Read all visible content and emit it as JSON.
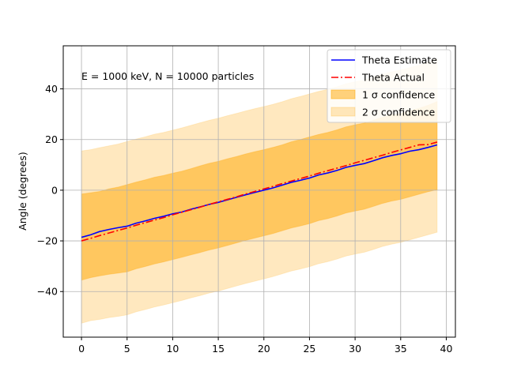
{
  "chart_data": {
    "type": "line",
    "title": "",
    "xlabel": "",
    "ylabel": "Angle (degrees)",
    "xlim": [
      -2,
      41
    ],
    "ylim": [
      -58,
      57
    ],
    "xticks": [
      0,
      5,
      10,
      15,
      20,
      25,
      30,
      35,
      40
    ],
    "yticks": [
      -40,
      -20,
      0,
      20,
      40
    ],
    "grid": true,
    "legend_position": "top-right",
    "annotation": "E = 1000 keV, N = 10000 particles",
    "x": [
      0,
      1,
      2,
      3,
      4,
      5,
      6,
      7,
      8,
      9,
      10,
      11,
      12,
      13,
      14,
      15,
      16,
      17,
      18,
      19,
      20,
      21,
      22,
      23,
      24,
      25,
      26,
      27,
      28,
      29,
      30,
      31,
      32,
      33,
      34,
      35,
      36,
      37,
      38,
      39
    ],
    "series": [
      {
        "name": "Theta Estimate",
        "color": "#0000ff",
        "style": "solid",
        "values": [
          -18.6,
          -17.6,
          -16.3,
          -15.5,
          -14.8,
          -14.2,
          -13.0,
          -12.1,
          -11.1,
          -10.3,
          -9.3,
          -8.6,
          -7.5,
          -6.6,
          -5.6,
          -4.8,
          -3.8,
          -2.8,
          -1.8,
          -0.9,
          0.0,
          0.9,
          2.0,
          3.1,
          3.9,
          4.8,
          6.0,
          6.8,
          7.8,
          9.0,
          9.8,
          10.5,
          11.6,
          12.8,
          13.7,
          14.4,
          15.4,
          16.0,
          16.9,
          17.9
        ]
      },
      {
        "name": "Theta Actual",
        "color": "#ff0000",
        "style": "dashdot",
        "values": [
          -20.0,
          -19.0,
          -17.9,
          -16.9,
          -15.9,
          -14.9,
          -13.8,
          -12.8,
          -11.8,
          -10.8,
          -9.7,
          -8.7,
          -7.7,
          -6.7,
          -5.6,
          -4.6,
          -3.6,
          -2.6,
          -1.5,
          -0.5,
          0.5,
          1.5,
          2.6,
          3.6,
          4.6,
          5.6,
          6.7,
          7.7,
          8.7,
          9.7,
          10.8,
          11.8,
          12.8,
          13.8,
          14.9,
          15.9,
          16.9,
          17.9,
          18.0,
          19.0
        ]
      }
    ],
    "bands": [
      {
        "name": "1 σ confidence",
        "color": "#ffa500",
        "opacity": 0.5,
        "lower": [
          -35.5,
          -34.5,
          -33.8,
          -33.2,
          -32.7,
          -32.2,
          -31.0,
          -30.1,
          -29.1,
          -28.3,
          -27.4,
          -26.5,
          -25.5,
          -24.6,
          -23.6,
          -22.8,
          -21.8,
          -20.8,
          -19.8,
          -18.9,
          -18.0,
          -17.1,
          -16.0,
          -14.9,
          -14.1,
          -13.2,
          -12.0,
          -11.2,
          -10.2,
          -9.0,
          -8.2,
          -7.5,
          -6.4,
          -5.2,
          -4.3,
          -3.6,
          -2.6,
          -1.6,
          -0.6,
          0.2
        ],
        "upper": [
          -1.5,
          -1.0,
          -0.5,
          0.5,
          1.2,
          2.2,
          3.2,
          4.1,
          5.1,
          5.8,
          6.7,
          7.5,
          8.5,
          9.6,
          10.6,
          11.4,
          12.4,
          13.3,
          14.3,
          15.2,
          16.0,
          16.9,
          17.9,
          19.1,
          20.0,
          21.0,
          22.0,
          22.8,
          23.8,
          25.0,
          25.8,
          26.5,
          27.6,
          28.8,
          29.7,
          30.3,
          31.4,
          32.3,
          33.5,
          35.0
        ]
      },
      {
        "name": "2 σ confidence",
        "color": "#ffa500",
        "opacity": 0.25,
        "lower": [
          -52.5,
          -51.5,
          -51.0,
          -50.3,
          -49.8,
          -49.2,
          -48.0,
          -47.1,
          -46.1,
          -45.3,
          -44.4,
          -43.5,
          -42.5,
          -41.6,
          -40.6,
          -39.8,
          -38.8,
          -37.8,
          -36.8,
          -35.9,
          -35.0,
          -34.1,
          -33.0,
          -31.9,
          -31.1,
          -30.2,
          -29.0,
          -28.2,
          -27.2,
          -26.0,
          -25.2,
          -24.5,
          -23.4,
          -22.2,
          -21.3,
          -20.6,
          -19.6,
          -18.6,
          -17.6,
          -16.6
        ],
        "upper": [
          15.5,
          16.0,
          16.8,
          17.5,
          18.2,
          19.2,
          20.2,
          21.1,
          22.1,
          22.8,
          23.7,
          24.6,
          25.6,
          26.6,
          27.6,
          28.4,
          29.4,
          30.3,
          31.3,
          32.2,
          33.0,
          33.9,
          34.9,
          36.1,
          37.0,
          38.0,
          39.0,
          39.8,
          40.8,
          42.0,
          42.8,
          43.5,
          44.6,
          45.8,
          46.7,
          47.4,
          48.4,
          49.3,
          50.6,
          52.0
        ]
      }
    ]
  }
}
